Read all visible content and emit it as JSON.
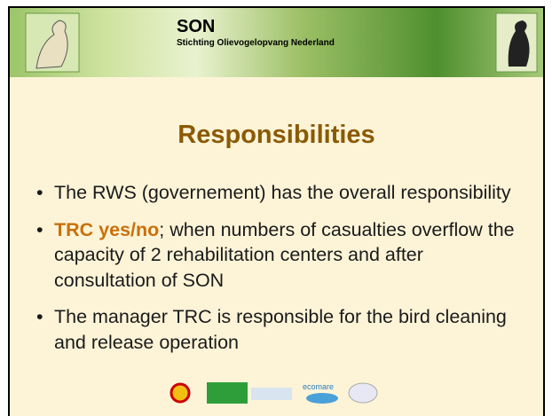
{
  "header": {
    "title": "SON",
    "subtitle": "Stichting Olievogelopvang Nederland"
  },
  "title": "Responsibilities",
  "bullets": [
    {
      "text": "The RWS (governement) has the overall responsibility"
    },
    {
      "bold": "TRC yes/no",
      "text": ";  when numbers of casualties overflow the capacity of 2 rehabilitation centers and after consultation of SON"
    },
    {
      "text": "The manager TRC is responsible for the bird cleaning and release operation"
    }
  ],
  "footer": {
    "logo_text": "ecomare"
  }
}
